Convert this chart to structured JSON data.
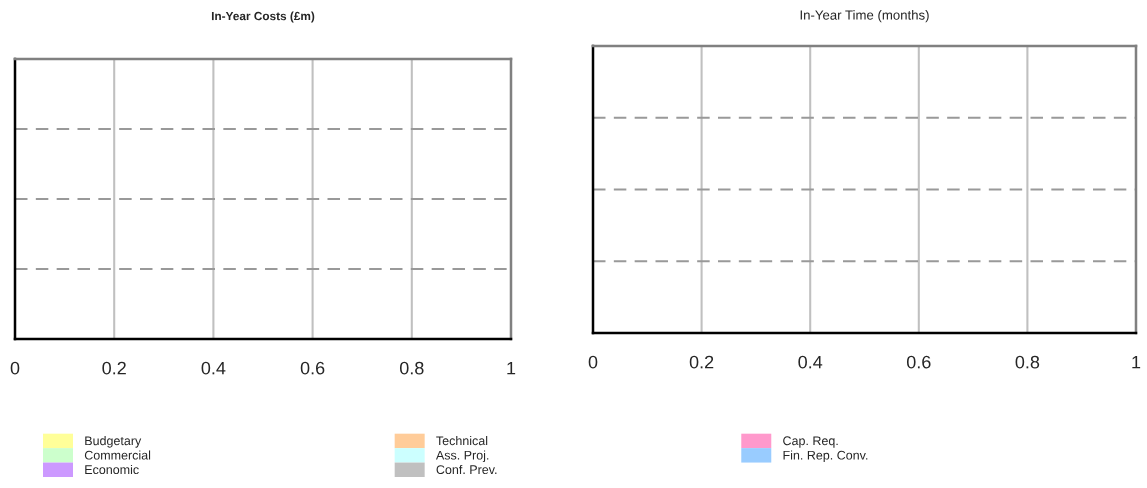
{
  "chart_data": [
    {
      "type": "bar",
      "orientation": "horizontal",
      "title": "In-Year Costs (£m)",
      "categories": [
        null,
        null,
        null,
        null
      ],
      "series": [
        {
          "name": "Budgetary",
          "color": "#ffff99",
          "values": [
            null,
            null,
            null,
            null
          ]
        },
        {
          "name": "Commercial",
          "color": "#ccffcc",
          "values": [
            null,
            null,
            null,
            null
          ]
        },
        {
          "name": "Economic",
          "color": "#cc99ff",
          "values": [
            null,
            null,
            null,
            null
          ]
        },
        {
          "name": "Technical",
          "color": "#ffcc99",
          "values": [
            null,
            null,
            null,
            null
          ]
        },
        {
          "name": "Ass. Proj.",
          "color": "#ccffff",
          "values": [
            null,
            null,
            null,
            null
          ]
        },
        {
          "name": "Conf. Prev.",
          "color": "#c0c0c0",
          "values": [
            null,
            null,
            null,
            null
          ]
        },
        {
          "name": "Cap. Req.",
          "color": "#ff99cc",
          "values": [
            null,
            null,
            null,
            null
          ]
        },
        {
          "name": "Fin. Rep. Conv.",
          "color": "#99ccff",
          "values": [
            null,
            null,
            null,
            null
          ]
        }
      ],
      "xlim": [
        0,
        1
      ],
      "xticks": [
        0,
        0.2,
        0.4,
        0.6,
        0.8,
        1
      ],
      "grid": true,
      "legend": "bottom"
    },
    {
      "type": "bar",
      "orientation": "horizontal",
      "title": "In-Year Time (months)",
      "categories": [
        null,
        null,
        null,
        null
      ],
      "values": [
        null,
        null,
        null,
        null
      ],
      "xlim": [
        0,
        1
      ],
      "xticks": [
        0,
        0.2,
        0.4,
        0.6,
        0.8,
        1
      ],
      "grid": true
    }
  ]
}
